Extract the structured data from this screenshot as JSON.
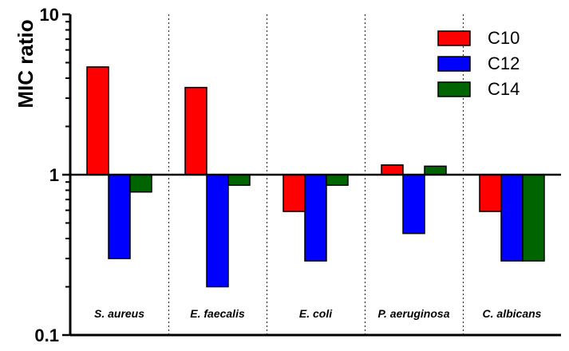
{
  "chart_data": {
    "type": "bar",
    "title": "",
    "xlabel": "",
    "ylabel": "MIC ratio",
    "yscale": "log",
    "ylim": [
      0.1,
      10
    ],
    "baseline": 1,
    "yticks": [
      "0.1",
      "1",
      "10"
    ],
    "grid": false,
    "category_separators": "dotted",
    "legend_position": "top-right",
    "categories": [
      "S. aureus",
      "E. faecalis",
      "E. coli",
      "P. aeruginosa",
      "C. albicans"
    ],
    "series": [
      {
        "name": "C10",
        "color": "#ff0000",
        "values": [
          4.7,
          3.5,
          0.59,
          1.15,
          0.59
        ]
      },
      {
        "name": "C12",
        "color": "#0000ff",
        "values": [
          0.3,
          0.2,
          0.29,
          0.43,
          0.29
        ]
      },
      {
        "name": "C14",
        "color": "#006400",
        "values": [
          0.78,
          0.86,
          0.86,
          1.13,
          0.29
        ]
      }
    ]
  }
}
